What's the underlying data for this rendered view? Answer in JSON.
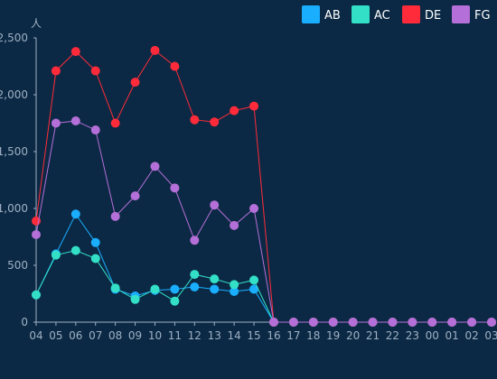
{
  "chart_data": {
    "type": "line",
    "unit": "人",
    "x": [
      "04",
      "05",
      "06",
      "07",
      "08",
      "09",
      "10",
      "11",
      "12",
      "13",
      "14",
      "15",
      "16",
      "17",
      "18",
      "19",
      "20",
      "21",
      "22",
      "23",
      "00",
      "01",
      "02",
      "03"
    ],
    "yticks": [
      "0",
      "500",
      "1,000",
      "1,500",
      "2,000",
      "2,500"
    ],
    "ylim": [
      0,
      2500
    ],
    "legend": "top-right",
    "grid": false,
    "series": [
      {
        "name": "AB",
        "color": "#1aaeff",
        "values": [
          240,
          600,
          950,
          700,
          290,
          230,
          280,
          290,
          310,
          290,
          270,
          290,
          0,
          0,
          0,
          0,
          0,
          0,
          0,
          0,
          0,
          0,
          0,
          0
        ]
      },
      {
        "name": "AC",
        "color": "#33e0c7",
        "values": [
          240,
          590,
          630,
          560,
          300,
          200,
          290,
          185,
          420,
          380,
          330,
          370,
          0,
          0,
          0,
          0,
          0,
          0,
          0,
          0,
          0,
          0,
          0,
          0
        ]
      },
      {
        "name": "DE",
        "color": "#ff2b3a",
        "values": [
          890,
          2210,
          2380,
          2210,
          1750,
          2110,
          2390,
          2250,
          1780,
          1760,
          1860,
          1900,
          0,
          0,
          0,
          0,
          0,
          0,
          0,
          0,
          0,
          0,
          0,
          0
        ]
      },
      {
        "name": "FG",
        "color": "#b56fd8",
        "values": [
          770,
          1750,
          1770,
          1690,
          930,
          1110,
          1370,
          1180,
          720,
          1030,
          850,
          1000,
          0,
          0,
          0,
          0,
          0,
          0,
          0,
          0,
          0,
          0,
          0,
          0
        ]
      }
    ]
  }
}
